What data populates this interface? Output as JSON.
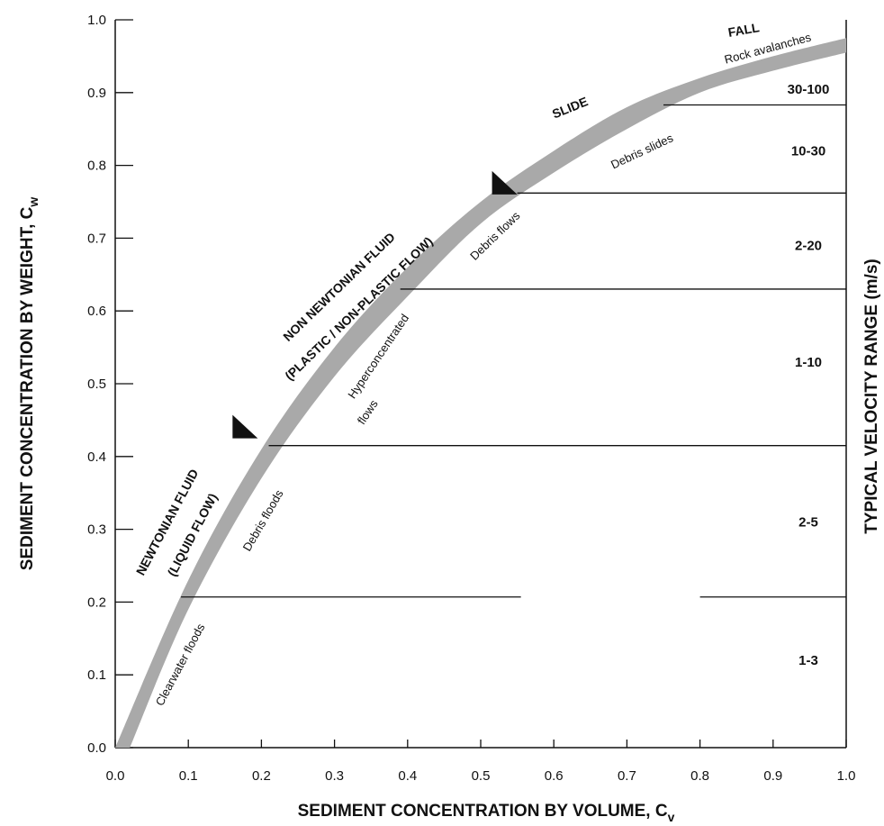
{
  "chart_data": {
    "type": "line",
    "xlabel_main": "SEDIMENT CONCENTRATION BY VOLUME, C",
    "xlabel_sub": "v",
    "ylabel_main": "SEDIMENT CONCENTRATION BY WEIGHT, C",
    "ylabel_sub": "w",
    "right_label": "TYPICAL VELOCITY RANGE (m/s)",
    "xlim": [
      0.0,
      1.0
    ],
    "ylim": [
      0.0,
      1.0
    ],
    "x_ticks": [
      "0.0",
      "0.1",
      "0.2",
      "0.3",
      "0.4",
      "0.5",
      "0.6",
      "0.7",
      "0.8",
      "0.9",
      "1.0"
    ],
    "y_ticks": [
      "0.0",
      "0.1",
      "0.2",
      "0.3",
      "0.4",
      "0.5",
      "0.6",
      "0.7",
      "0.8",
      "0.9",
      "1.0"
    ],
    "series": [
      {
        "x": [
          0.0,
          0.1,
          0.2,
          0.3,
          0.4,
          0.5,
          0.6,
          0.7,
          0.8,
          0.9,
          1.0
        ],
        "upper": [
          0.0,
          0.23,
          0.41,
          0.55,
          0.66,
          0.75,
          0.82,
          0.88,
          0.92,
          0.95,
          0.975
        ],
        "lower": [
          0.0,
          0.19,
          0.37,
          0.51,
          0.62,
          0.72,
          0.79,
          0.85,
          0.9,
          0.93,
          0.955
        ]
      }
    ],
    "thresholds": [
      {
        "y": 0.207,
        "x_start": 0.09,
        "x_end": 1.0,
        "gap": [
          0.555,
          0.8
        ]
      },
      {
        "y": 0.415,
        "x_start": 0.21,
        "x_end": 1.0
      },
      {
        "y": 0.63,
        "x_start": 0.39,
        "x_end": 1.0
      },
      {
        "y": 0.762,
        "x_start": 0.55,
        "x_end": 1.0
      },
      {
        "y": 0.883,
        "x_start": 0.75,
        "x_end": 1.0
      }
    ],
    "zone_labels": {
      "newtonian_1": "NEWTONIAN FLUID",
      "newtonian_2": "(LIQUID FLOW)",
      "non_newtonian_1": "NON NEWTONIAN FLUID",
      "non_newtonian_2": "(PLASTIC / NON-PLASTIC FLOW)",
      "slide": "SLIDE",
      "fall": "FALL"
    },
    "flow_labels": {
      "clearwater": "Clearwater floods",
      "debris_floods": "Debris floods",
      "hyper_1": "Hyperconcentrated",
      "hyper_2": "flows",
      "debris_flows": "Debris flows",
      "debris_slides": "Debris slides",
      "rock_avalanches": "Rock avalanches"
    },
    "velocity_ranges": [
      "1-3",
      "2-5",
      "1-10",
      "2-20",
      "10-30",
      "30-100"
    ],
    "velocity_positions": [
      0.12,
      0.31,
      0.53,
      0.69,
      0.82,
      0.905
    ],
    "markers": [
      {
        "x": 0.195,
        "y": 0.425
      },
      {
        "x": 0.55,
        "y": 0.76
      }
    ],
    "colors": {
      "band": "#a9a9a9",
      "ink": "#111111"
    }
  }
}
